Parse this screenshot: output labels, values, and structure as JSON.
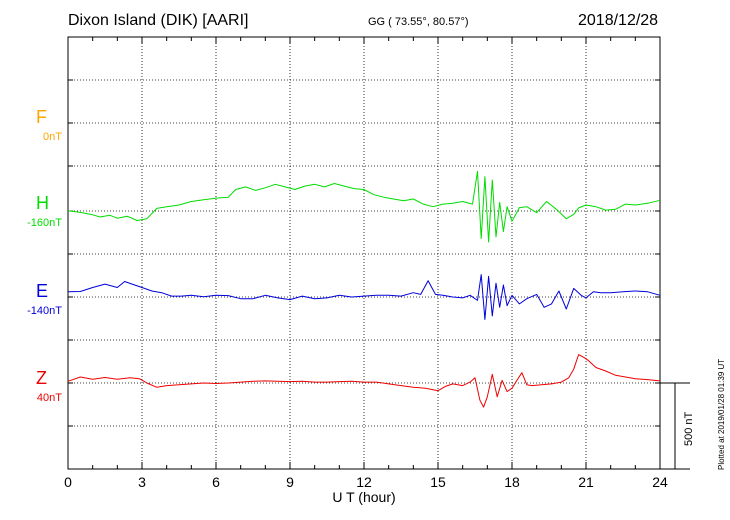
{
  "header": {
    "station": "Dixon Island (DIK)  [AARI]",
    "coords": "GG ( 73.55°,  80.57°)",
    "date": "2018/12/28"
  },
  "plotted_note": "Plotted at 2019/01/28 01:39 UT",
  "scale_bar_label": "500 nT",
  "components": [
    {
      "letter": "F",
      "offset": "0nT",
      "color": "#ffa500"
    },
    {
      "letter": "H",
      "offset": "-160nT",
      "color": "#00dd00"
    },
    {
      "letter": "E",
      "offset": "-140nT",
      "color": "#0000dd"
    },
    {
      "letter": "Z",
      "offset": "40nT",
      "color": "#ee0000"
    }
  ],
  "chart_data": {
    "type": "line",
    "title": "Dixon Island (DIK)  [AARI]",
    "xlabel": "U T (hour)",
    "xlim": [
      0,
      24
    ],
    "xticks": [
      0,
      3,
      6,
      9,
      12,
      15,
      18,
      21,
      24
    ],
    "ylim_nT": [
      0,
      1100
    ],
    "grid": true,
    "scale_bar_nT": 500,
    "series": [
      {
        "name": "F",
        "color": "#ffa500",
        "x": [],
        "y": []
      },
      {
        "name": "H",
        "color": "#00dd00",
        "x": [
          0,
          0.5,
          1.0,
          1.3,
          1.7,
          2.0,
          2.4,
          2.8,
          3.2,
          3.6,
          4.0,
          4.5,
          5.0,
          5.5,
          6.0,
          6.5,
          6.8,
          7.2,
          7.6,
          8.0,
          8.4,
          8.8,
          9.2,
          9.6,
          10.0,
          10.4,
          10.8,
          11.2,
          11.6,
          12.0,
          12.4,
          12.8,
          13.2,
          13.6,
          14.0,
          14.4,
          14.8,
          15.2,
          15.6,
          16.0,
          16.4,
          16.6,
          16.75,
          16.9,
          17.05,
          17.2,
          17.35,
          17.5,
          17.65,
          17.8,
          18.0,
          18.3,
          18.6,
          19.0,
          19.4,
          19.8,
          20.2,
          20.5,
          20.7,
          21.0,
          21.4,
          21.8,
          22.2,
          22.6,
          23.0,
          23.5,
          24.0
        ],
        "y": [
          1.2,
          -8,
          -22,
          -35,
          -25,
          -42,
          -30,
          -55,
          -45,
          15,
          25,
          35,
          55,
          65,
          75,
          80,
          125,
          140,
          120,
          135,
          155,
          140,
          125,
          145,
          155,
          140,
          160,
          145,
          130,
          125,
          95,
          80,
          70,
          60,
          70,
          40,
          25,
          40,
          45,
          55,
          40,
          230,
          -160,
          200,
          -180,
          180,
          -150,
          50,
          -120,
          25,
          -60,
          20,
          25,
          -10,
          55,
          10,
          -45,
          -20,
          18,
          35,
          25,
          5,
          10,
          40,
          35,
          45,
          62
        ]
      },
      {
        "name": "E",
        "color": "#0000dd",
        "x": [
          0,
          0.5,
          1.0,
          1.5,
          2.0,
          2.3,
          2.6,
          3.0,
          3.4,
          3.8,
          4.2,
          4.6,
          5.0,
          5.5,
          6.0,
          6.5,
          7.0,
          7.5,
          8.0,
          8.5,
          9.0,
          9.5,
          10.0,
          10.5,
          11.0,
          11.5,
          12.0,
          12.5,
          13.0,
          13.5,
          14.0,
          14.3,
          14.6,
          14.9,
          15.2,
          15.6,
          16.0,
          16.3,
          16.6,
          16.75,
          16.9,
          17.05,
          17.2,
          17.35,
          17.5,
          17.65,
          17.8,
          18.0,
          18.3,
          18.6,
          19.0,
          19.3,
          19.6,
          19.9,
          20.2,
          20.5,
          20.8,
          21.0,
          21.3,
          21.6,
          22.0,
          22.5,
          23.0,
          23.5,
          24.0
        ],
        "y": [
          30,
          32,
          55,
          75,
          55,
          90,
          75,
          55,
          35,
          25,
          5,
          5,
          10,
          2,
          10,
          8,
          -10,
          -10,
          10,
          -5,
          -15,
          5,
          -10,
          -5,
          10,
          0,
          5,
          10,
          10,
          5,
          25,
          15,
          95,
          15,
          10,
          0,
          -5,
          10,
          -20,
          130,
          -130,
          120,
          -110,
          80,
          -60,
          70,
          -50,
          10,
          -40,
          -10,
          15,
          -60,
          -40,
          35,
          -70,
          50,
          10,
          -5,
          30,
          25,
          25,
          30,
          35,
          30,
          10
        ]
      },
      {
        "name": "Z",
        "color": "#ee0000",
        "x": [
          0,
          0.5,
          1.0,
          1.5,
          2.0,
          2.5,
          2.9,
          3.2,
          3.6,
          4.0,
          4.5,
          5.0,
          5.5,
          6.0,
          6.5,
          7.0,
          7.5,
          8.0,
          8.5,
          9.0,
          9.5,
          10.0,
          10.5,
          11.0,
          11.5,
          12.0,
          12.5,
          13.0,
          13.5,
          14.0,
          14.5,
          15.0,
          15.3,
          15.6,
          16.0,
          16.3,
          16.5,
          16.7,
          16.85,
          17.0,
          17.2,
          17.4,
          17.6,
          17.8,
          18.0,
          18.2,
          18.4,
          18.6,
          18.8,
          19.2,
          19.6,
          20.0,
          20.3,
          20.5,
          20.7,
          20.9,
          21.1,
          21.4,
          21.8,
          22.2,
          22.6,
          23.0,
          23.5,
          24.0
        ],
        "y": [
          10,
          35,
          22,
          32,
          22,
          30,
          25,
          0,
          -25,
          -15,
          -10,
          -5,
          0,
          -3,
          0,
          5,
          10,
          12,
          10,
          8,
          10,
          5,
          5,
          8,
          10,
          5,
          5,
          -5,
          -15,
          -25,
          -30,
          -45,
          -20,
          -5,
          -15,
          5,
          30,
          -100,
          -140,
          -80,
          50,
          -80,
          15,
          -50,
          -30,
          15,
          60,
          -10,
          -15,
          -10,
          -5,
          5,
          30,
          80,
          165,
          150,
          130,
          90,
          70,
          45,
          35,
          25,
          20,
          12
        ]
      }
    ]
  }
}
